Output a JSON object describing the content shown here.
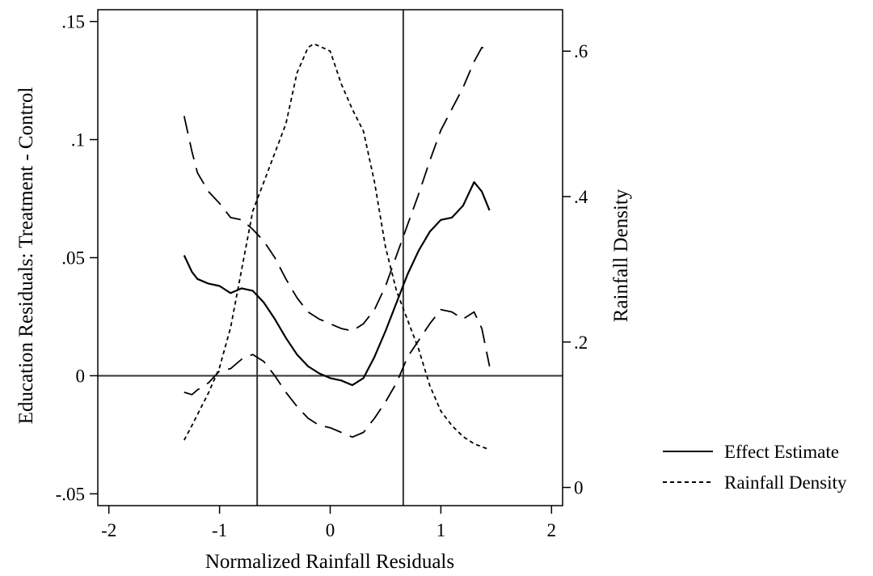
{
  "chart_data": {
    "type": "line",
    "title": "",
    "xlabel": "Normalized Rainfall Residuals",
    "ylabel_left": "Education Residuals: Treatment - Control",
    "ylabel_right": "Rainfall Density",
    "xlim": [
      -2.1,
      2.1
    ],
    "ylim_left": [
      -0.055,
      0.155
    ],
    "ylim_right": [
      -0.025,
      0.657
    ],
    "x_ticks": [
      -2,
      -1,
      0,
      1,
      2
    ],
    "x_tick_labels": [
      "-2",
      "-1",
      "0",
      "1",
      "2"
    ],
    "y_left_ticks": [
      -0.05,
      0,
      0.05,
      0.1,
      0.15
    ],
    "y_left_tick_labels": [
      "-.05",
      "0",
      ".05",
      ".1",
      ".15"
    ],
    "y_right_ticks": [
      0,
      0.2,
      0.4,
      0.6
    ],
    "y_right_tick_labels": [
      "0",
      ".2",
      ".4",
      ".6"
    ],
    "reference_lines": {
      "y": [
        0
      ],
      "x": [
        -0.66,
        0.66
      ]
    },
    "grid": false,
    "legend_position": "right",
    "series": [
      {
        "name": "Effect Estimate",
        "axis": "left",
        "style": "solid",
        "x": [
          -1.32,
          -1.25,
          -1.2,
          -1.1,
          -1.0,
          -0.9,
          -0.8,
          -0.7,
          -0.6,
          -0.5,
          -0.4,
          -0.3,
          -0.2,
          -0.1,
          0.0,
          0.1,
          0.2,
          0.3,
          0.4,
          0.5,
          0.6,
          0.7,
          0.8,
          0.9,
          1.0,
          1.1,
          1.2,
          1.3,
          1.37,
          1.44
        ],
        "y": [
          0.051,
          0.044,
          0.041,
          0.039,
          0.038,
          0.035,
          0.037,
          0.036,
          0.031,
          0.024,
          0.016,
          0.009,
          0.004,
          0.001,
          -0.001,
          -0.002,
          -0.004,
          -0.001,
          0.008,
          0.019,
          0.031,
          0.043,
          0.053,
          0.061,
          0.066,
          0.067,
          0.072,
          0.082,
          0.078,
          0.07
        ]
      },
      {
        "name": "",
        "axis": "left",
        "style": "dashed",
        "x": [
          -1.32,
          -1.25,
          -1.2,
          -1.1,
          -1.0,
          -0.9,
          -0.8,
          -0.7,
          -0.6,
          -0.5,
          -0.4,
          -0.3,
          -0.2,
          -0.1,
          0.0,
          0.1,
          0.2,
          0.3,
          0.4,
          0.5,
          0.6,
          0.7,
          0.8,
          0.9,
          1.0,
          1.1,
          1.2,
          1.3,
          1.37,
          1.44
        ],
        "y": [
          0.11,
          0.095,
          0.086,
          0.078,
          0.073,
          0.067,
          0.066,
          0.062,
          0.057,
          0.05,
          0.041,
          0.033,
          0.027,
          0.024,
          0.022,
          0.02,
          0.019,
          0.022,
          0.028,
          0.038,
          0.051,
          0.064,
          0.077,
          0.091,
          0.104,
          0.113,
          0.122,
          0.133,
          0.139,
          0.138
        ]
      },
      {
        "name": "",
        "axis": "left",
        "style": "dashed",
        "x": [
          -1.32,
          -1.25,
          -1.2,
          -1.1,
          -1.0,
          -0.9,
          -0.8,
          -0.7,
          -0.6,
          -0.5,
          -0.4,
          -0.3,
          -0.2,
          -0.1,
          0.0,
          0.1,
          0.2,
          0.3,
          0.4,
          0.5,
          0.6,
          0.7,
          0.8,
          0.9,
          1.0,
          1.1,
          1.2,
          1.3,
          1.37,
          1.44
        ],
        "y": [
          -0.007,
          -0.008,
          -0.006,
          -0.003,
          0.002,
          0.003,
          0.007,
          0.009,
          0.006,
          0.0,
          -0.007,
          -0.013,
          -0.018,
          -0.021,
          -0.022,
          -0.024,
          -0.026,
          -0.024,
          -0.018,
          -0.011,
          -0.003,
          0.008,
          0.015,
          0.022,
          0.028,
          0.027,
          0.024,
          0.027,
          0.02,
          0.004
        ]
      },
      {
        "name": "Rainfall Density",
        "axis": "right",
        "style": "short-dashed",
        "x": [
          -1.32,
          -1.25,
          -1.2,
          -1.1,
          -1.0,
          -0.9,
          -0.8,
          -0.7,
          -0.6,
          -0.5,
          -0.4,
          -0.3,
          -0.2,
          -0.15,
          -0.1,
          0.0,
          0.1,
          0.2,
          0.3,
          0.4,
          0.5,
          0.6,
          0.7,
          0.8,
          0.9,
          1.0,
          1.1,
          1.2,
          1.3,
          1.44
        ],
        "y": [
          0.065,
          0.085,
          0.1,
          0.13,
          0.165,
          0.22,
          0.3,
          0.38,
          0.42,
          0.46,
          0.5,
          0.57,
          0.605,
          0.61,
          0.607,
          0.6,
          0.555,
          0.52,
          0.49,
          0.42,
          0.33,
          0.27,
          0.23,
          0.19,
          0.14,
          0.105,
          0.085,
          0.07,
          0.06,
          0.052
        ]
      }
    ]
  },
  "legend": {
    "items": [
      {
        "label": "Effect Estimate",
        "style": "solid"
      },
      {
        "label": "Rainfall Density",
        "style": "short-dashed"
      }
    ]
  },
  "colors": {
    "line": "#000000",
    "reference": "#333333"
  }
}
